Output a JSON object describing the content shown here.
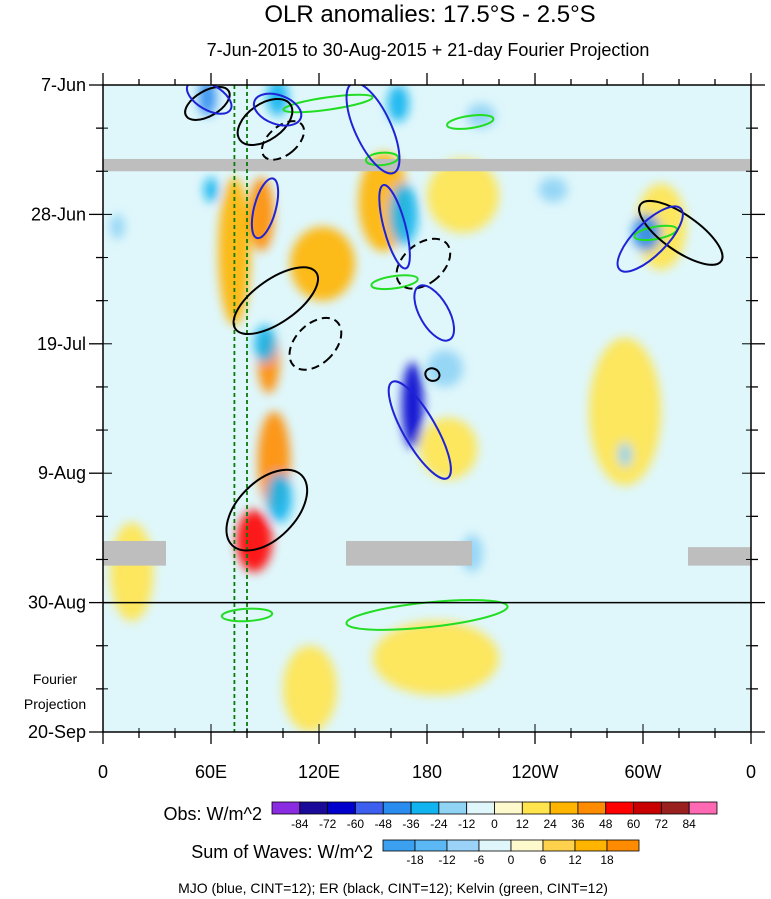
{
  "title": "OLR anomalies: 17.5°S - 2.5°S",
  "subtitle": "7-Jun-2015 to 30-Aug-2015 + 21-day Fourier Projection",
  "footer": "MJO (blue, CINT=12); ER (black, CINT=12); Kelvin (green, CINT=12)",
  "colors": {
    "background_zero": "#dff7fb",
    "light_yellow": "#fffacd",
    "missing": "#bebebe",
    "mjo": "#1f23d6",
    "er": "#000000",
    "kelvin": "#22dd22",
    "marker_line": "#0a7a0a"
  },
  "chart_data": {
    "type": "heatmap",
    "title": "OLR anomalies: 17.5°S - 2.5°S",
    "subtitle": "7-Jun-2015 to 30-Aug-2015 + 21-day Fourier Projection",
    "x_axis": {
      "ticks": [
        "0",
        "60E",
        "120E",
        "180",
        "120W",
        "60W",
        "0"
      ],
      "tick_values": [
        0,
        60,
        120,
        180,
        240,
        300,
        360
      ],
      "range": [
        0,
        360
      ]
    },
    "y_axis": {
      "ticks": [
        "7-Jun",
        "28-Jun",
        "19-Jul",
        "9-Aug",
        "30-Aug",
        "20-Sep"
      ],
      "tick_dates": [
        "2015-06-07",
        "2015-06-28",
        "2015-07-19",
        "2015-08-09",
        "2015-08-30",
        "2015-09-20"
      ],
      "range": [
        "2015-06-07",
        "2015-09-20"
      ],
      "reversed": true
    },
    "projection_label": [
      "Fourier",
      "Projection"
    ],
    "observed_end": "2015-08-30",
    "obs_colorbar": {
      "label": "Obs: W/m^2",
      "levels": [
        -84,
        -72,
        -60,
        -48,
        -36,
        -24,
        -12,
        0,
        12,
        24,
        36,
        48,
        60,
        72,
        84
      ],
      "colors": [
        "#8a2be2",
        "#1a0a9a",
        "#0000cd",
        "#3c5ff0",
        "#2b8cf0",
        "#12b4f0",
        "#8fd3f5",
        "#dff7fb",
        "#fffacd",
        "#ffe44d",
        "#ffb400",
        "#ff8c00",
        "#ff0000",
        "#c80000",
        "#9a2020",
        "#ff69b4"
      ]
    },
    "wave_colorbar": {
      "label": "Sum of Waves: W/m^2",
      "levels": [
        -18,
        -12,
        -6,
        0,
        6,
        12,
        18
      ],
      "colors": [
        "#3ca0f0",
        "#5cb8f5",
        "#9ad3f7",
        "#dff7fb",
        "#fffacd",
        "#ffd24d",
        "#ffb400",
        "#ff8c00"
      ]
    },
    "missing_bands": [
      {
        "lon": [
          0,
          360
        ],
        "dates": [
          "2015-06-19",
          "2015-06-21"
        ]
      },
      {
        "lon": [
          0,
          35
        ],
        "dates": [
          "2015-08-20",
          "2015-08-24"
        ]
      },
      {
        "lon": [
          135,
          205
        ],
        "dates": [
          "2015-08-20",
          "2015-08-24"
        ]
      },
      {
        "lon": [
          325,
          360
        ],
        "dates": [
          "2015-08-21",
          "2015-08-24"
        ]
      }
    ],
    "marker_lons": [
      73,
      80
    ],
    "mjo_contours": [
      {
        "lon": 59,
        "date": "2015-06-09",
        "dlon": 7,
        "ddays": 4,
        "angle": -60
      },
      {
        "lon": 97,
        "date": "2015-06-11",
        "dlon": 8,
        "ddays": 4,
        "angle": -70
      },
      {
        "lon": 150,
        "date": "2015-06-14",
        "dlon": 10,
        "ddays": 8,
        "angle": -25
      },
      {
        "lon": 90,
        "date": "2015-06-27",
        "dlon": 6,
        "ddays": 5,
        "angle": 15
      },
      {
        "lon": 162,
        "date": "2015-06-30",
        "dlon": 6,
        "ddays": 7,
        "angle": -15
      },
      {
        "lon": 184,
        "date": "2015-07-14",
        "dlon": 8,
        "ddays": 5,
        "angle": -30
      },
      {
        "lon": 176,
        "date": "2015-08-02",
        "dlon": 9,
        "ddays": 9,
        "angle": -30
      },
      {
        "lon": 304,
        "date": "2015-07-02",
        "dlon": 9,
        "ddays": 7,
        "angle": 45
      }
    ],
    "er_contours": [
      {
        "lon": 58,
        "date": "2015-06-10",
        "dlon": 7,
        "ddays": 4,
        "angle": 60
      },
      {
        "lon": 90,
        "date": "2015-06-13",
        "dlon": 10,
        "ddays": 5,
        "angle": 55
      },
      {
        "lon": 100,
        "date": "2015-06-16",
        "dlon": 8,
        "ddays": 4,
        "angle": 50,
        "dashed": true
      },
      {
        "lon": 96,
        "date": "2015-07-12",
        "dlon": 12,
        "ddays": 8,
        "angle": 55
      },
      {
        "lon": 118,
        "date": "2015-07-19",
        "dlon": 11,
        "ddays": 5,
        "angle": 45,
        "dashed": true
      },
      {
        "lon": 178,
        "date": "2015-07-06",
        "dlon": 11,
        "ddays": 5,
        "angle": 50,
        "dashed": true
      },
      {
        "lon": 183,
        "date": "2015-07-24",
        "dlon": 4,
        "ddays": 1,
        "angle": 20
      },
      {
        "lon": 91,
        "date": "2015-08-15",
        "dlon": 16,
        "ddays": 8,
        "angle": 45
      },
      {
        "lon": 321,
        "date": "2015-07-01",
        "dlon": 10,
        "ddays": 8,
        "angle": -55
      }
    ],
    "kelvin_contours": [
      {
        "lon": 125,
        "date": "2015-06-10",
        "dlon": 25,
        "ddays": 1,
        "angle": -8
      },
      {
        "lon": 204,
        "date": "2015-06-13",
        "dlon": 13,
        "ddays": 1,
        "angle": -8
      },
      {
        "lon": 155,
        "date": "2015-06-19",
        "dlon": 9,
        "ddays": 1,
        "angle": -5
      },
      {
        "lon": 162,
        "date": "2015-07-09",
        "dlon": 13,
        "ddays": 1,
        "angle": -8
      },
      {
        "lon": 307,
        "date": "2015-07-01",
        "dlon": 12,
        "ddays": 1,
        "angle": -10
      },
      {
        "lon": 180,
        "date": "2015-09-01",
        "dlon": 45,
        "ddays": 2,
        "angle": -6
      },
      {
        "lon": 80,
        "date": "2015-09-01",
        "dlon": 14,
        "ddays": 1,
        "angle": -3
      }
    ],
    "anomaly_features": [
      {
        "lon": 156,
        "date": "2015-06-26",
        "dlon": 14,
        "ddays": 8,
        "value": 24
      },
      {
        "lon": 73,
        "date": "2015-07-04",
        "dlon": 9,
        "ddays": 12,
        "value": 24
      },
      {
        "lon": 88,
        "date": "2015-06-28",
        "dlon": 7,
        "ddays": 6,
        "value": 36
      },
      {
        "lon": 92,
        "date": "2015-07-22",
        "dlon": 6,
        "ddays": 5,
        "value": 36
      },
      {
        "lon": 95,
        "date": "2015-08-07",
        "dlon": 9,
        "ddays": 8,
        "value": 36
      },
      {
        "lon": 84,
        "date": "2015-08-20",
        "dlon": 10,
        "ddays": 5,
        "value": 48
      },
      {
        "lon": 122,
        "date": "2015-07-06",
        "dlon": 18,
        "ddays": 6,
        "value": 24
      },
      {
        "lon": 192,
        "date": "2015-08-05",
        "dlon": 16,
        "ddays": 5,
        "value": 12
      },
      {
        "lon": 200,
        "date": "2015-06-25",
        "dlon": 20,
        "ddays": 6,
        "value": 12
      },
      {
        "lon": 310,
        "date": "2015-06-30",
        "dlon": 14,
        "ddays": 7,
        "value": 12
      },
      {
        "lon": 290,
        "date": "2015-07-30",
        "dlon": 20,
        "ddays": 12,
        "value": 12
      },
      {
        "lon": 185,
        "date": "2015-09-08",
        "dlon": 35,
        "ddays": 6,
        "value": 12
      },
      {
        "lon": 115,
        "date": "2015-09-13",
        "dlon": 15,
        "ddays": 7,
        "value": 12
      },
      {
        "lon": 16,
        "date": "2015-08-25",
        "dlon": 12,
        "ddays": 8,
        "value": 12
      },
      {
        "lon": 167,
        "date": "2015-06-28",
        "dlon": 8,
        "ddays": 5,
        "value": -36
      },
      {
        "lon": 172,
        "date": "2015-07-29",
        "dlon": 6,
        "ddays": 7,
        "value": -72
      },
      {
        "lon": 58,
        "date": "2015-06-09",
        "dlon": 5,
        "ddays": 3,
        "value": -48
      },
      {
        "lon": 97,
        "date": "2015-06-09",
        "dlon": 6,
        "ddays": 3,
        "value": -36
      },
      {
        "lon": 164,
        "date": "2015-06-10",
        "dlon": 6,
        "ddays": 3,
        "value": -36
      },
      {
        "lon": 302,
        "date": "2015-07-01",
        "dlon": 8,
        "ddays": 3,
        "value": -48
      },
      {
        "lon": 250,
        "date": "2015-06-24",
        "dlon": 8,
        "ddays": 2,
        "value": -24
      },
      {
        "lon": 60,
        "date": "2015-06-24",
        "dlon": 4,
        "ddays": 2,
        "value": -36
      },
      {
        "lon": 90,
        "date": "2015-07-19",
        "dlon": 6,
        "ddays": 3,
        "value": -36
      },
      {
        "lon": 98,
        "date": "2015-08-13",
        "dlon": 7,
        "ddays": 4,
        "value": -36
      },
      {
        "lon": 8,
        "date": "2015-06-30",
        "dlon": 4,
        "ddays": 2,
        "value": -24
      },
      {
        "lon": 205,
        "date": "2015-08-22",
        "dlon": 6,
        "ddays": 3,
        "value": -24
      },
      {
        "lon": 190,
        "date": "2015-07-23",
        "dlon": 10,
        "ddays": 3,
        "value": -24
      },
      {
        "lon": 210,
        "date": "2015-06-12",
        "dlon": 8,
        "ddays": 2,
        "value": -24
      },
      {
        "lon": 290,
        "date": "2015-08-06",
        "dlon": 4,
        "ddays": 2,
        "value": -24
      }
    ]
  }
}
